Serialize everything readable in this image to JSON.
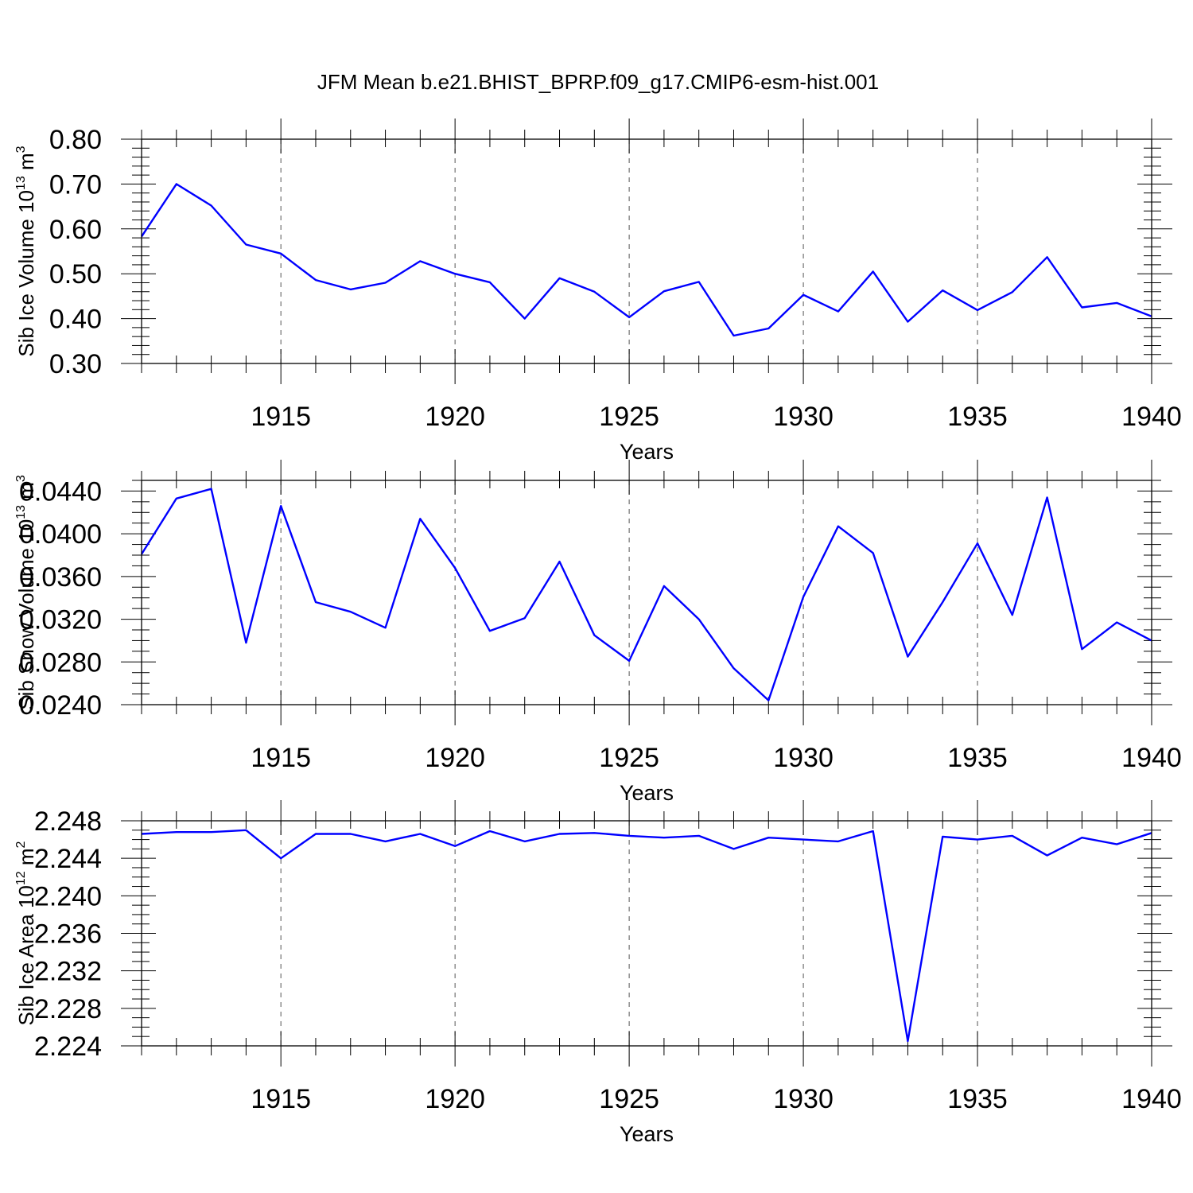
{
  "title": "JFM Mean b.e21.BHIST_BPRP.f09_g17.CMIP6-esm-hist.001",
  "chart_data": [
    {
      "type": "line",
      "title": "JFM Mean b.e21.BHIST_BPRP.f09_g17.CMIP6-esm-hist.001",
      "xlabel": "Years",
      "ylabel": {
        "text": "Sib Ice Volume 10",
        "sup": "13",
        "unit": " m",
        "unit_sup": "3"
      },
      "xlim": [
        1911,
        1940
      ],
      "ylim": [
        0.3,
        0.8
      ],
      "x_ticks": [
        1915,
        1920,
        1925,
        1930,
        1935,
        1940
      ],
      "x_tick_labels": [
        "1915",
        "1920",
        "1925",
        "1930",
        "1935",
        "1940"
      ],
      "y_ticks": [
        0.3,
        0.4,
        0.5,
        0.6,
        0.7,
        0.8
      ],
      "y_tick_labels": [
        "0.30",
        "0.40",
        "0.50",
        "0.60",
        "0.70",
        "0.80"
      ],
      "y_minor_step": 0.02,
      "grid": "vertical dashed at major x ticks",
      "series": [
        {
          "name": "Sib Ice Volume",
          "color": "#0000ff",
          "x": [
            1911,
            1912,
            1913,
            1914,
            1915,
            1916,
            1917,
            1918,
            1919,
            1920,
            1921,
            1922,
            1923,
            1924,
            1925,
            1926,
            1927,
            1928,
            1929,
            1930,
            1931,
            1932,
            1933,
            1934,
            1935,
            1936,
            1937,
            1938,
            1939,
            1940
          ],
          "values": [
            0.583,
            0.7,
            0.652,
            0.565,
            0.545,
            0.486,
            0.465,
            0.48,
            0.528,
            0.5,
            0.481,
            0.4,
            0.49,
            0.46,
            0.403,
            0.461,
            0.482,
            0.362,
            0.378,
            0.453,
            0.416,
            0.505,
            0.393,
            0.463,
            0.419,
            0.459,
            0.537,
            0.425,
            0.435,
            0.405
          ]
        }
      ]
    },
    {
      "type": "line",
      "xlabel": "Years",
      "ylabel": {
        "text": "Sib Snow Volume 10",
        "sup": "13",
        "unit": " m",
        "unit_sup": "3"
      },
      "xlim": [
        1911,
        1940
      ],
      "ylim": [
        0.024,
        0.045
      ],
      "x_ticks": [
        1915,
        1920,
        1925,
        1930,
        1935,
        1940
      ],
      "x_tick_labels": [
        "1915",
        "1920",
        "1925",
        "1930",
        "1935",
        "1940"
      ],
      "y_ticks": [
        0.024,
        0.028,
        0.032,
        0.036,
        0.04,
        0.044
      ],
      "y_tick_labels": [
        "0.0240",
        "0.0280",
        "0.0320",
        "0.0360",
        "0.0400",
        "0.0440"
      ],
      "y_minor_step": 0.001,
      "grid": "vertical dashed at major x ticks",
      "series": [
        {
          "name": "Sib Snow Volume",
          "color": "#0000ff",
          "x": [
            1911,
            1912,
            1913,
            1914,
            1915,
            1916,
            1917,
            1918,
            1919,
            1920,
            1921,
            1922,
            1923,
            1924,
            1925,
            1926,
            1927,
            1928,
            1929,
            1930,
            1931,
            1932,
            1933,
            1934,
            1935,
            1936,
            1937,
            1938,
            1939,
            1940
          ],
          "values": [
            0.0381,
            0.0433,
            0.0442,
            0.0298,
            0.0426,
            0.0336,
            0.0327,
            0.0312,
            0.0414,
            0.0368,
            0.0309,
            0.0321,
            0.0374,
            0.0305,
            0.0281,
            0.0351,
            0.032,
            0.0274,
            0.0244,
            0.0341,
            0.0407,
            0.0382,
            0.0285,
            0.0336,
            0.0391,
            0.0324,
            0.0434,
            0.0292,
            0.0317,
            0.03
          ]
        }
      ]
    },
    {
      "type": "line",
      "xlabel": "Years",
      "ylabel": {
        "text": "Sib Ice Area 10",
        "sup": "12",
        "unit": " m",
        "unit_sup": "2"
      },
      "xlim": [
        1911,
        1940
      ],
      "ylim": [
        2.224,
        2.248
      ],
      "x_ticks": [
        1915,
        1920,
        1925,
        1930,
        1935,
        1940
      ],
      "x_tick_labels": [
        "1915",
        "1920",
        "1925",
        "1930",
        "1935",
        "1940"
      ],
      "y_ticks": [
        2.224,
        2.228,
        2.232,
        2.236,
        2.24,
        2.244,
        2.248
      ],
      "y_tick_labels": [
        "2.224",
        "2.228",
        "2.232",
        "2.236",
        "2.240",
        "2.244",
        "2.248"
      ],
      "y_minor_step": 0.001,
      "grid": "vertical dashed at major x ticks",
      "series": [
        {
          "name": "Sib Ice Area",
          "color": "#0000ff",
          "x": [
            1911,
            1912,
            1913,
            1914,
            1915,
            1916,
            1917,
            1918,
            1919,
            1920,
            1921,
            1922,
            1923,
            1924,
            1925,
            1926,
            1927,
            1928,
            1929,
            1930,
            1931,
            1932,
            1933,
            1934,
            1935,
            1936,
            1937,
            1938,
            1939,
            1940
          ],
          "values": [
            2.2466,
            2.2468,
            2.2468,
            2.247,
            2.244,
            2.2466,
            2.2466,
            2.2458,
            2.2466,
            2.2453,
            2.2469,
            2.2458,
            2.2466,
            2.2467,
            2.2464,
            2.2462,
            2.2464,
            2.245,
            2.2462,
            2.246,
            2.2458,
            2.2469,
            2.2245,
            2.2463,
            2.246,
            2.2464,
            2.2443,
            2.2462,
            2.2455,
            2.2467
          ]
        }
      ]
    }
  ]
}
